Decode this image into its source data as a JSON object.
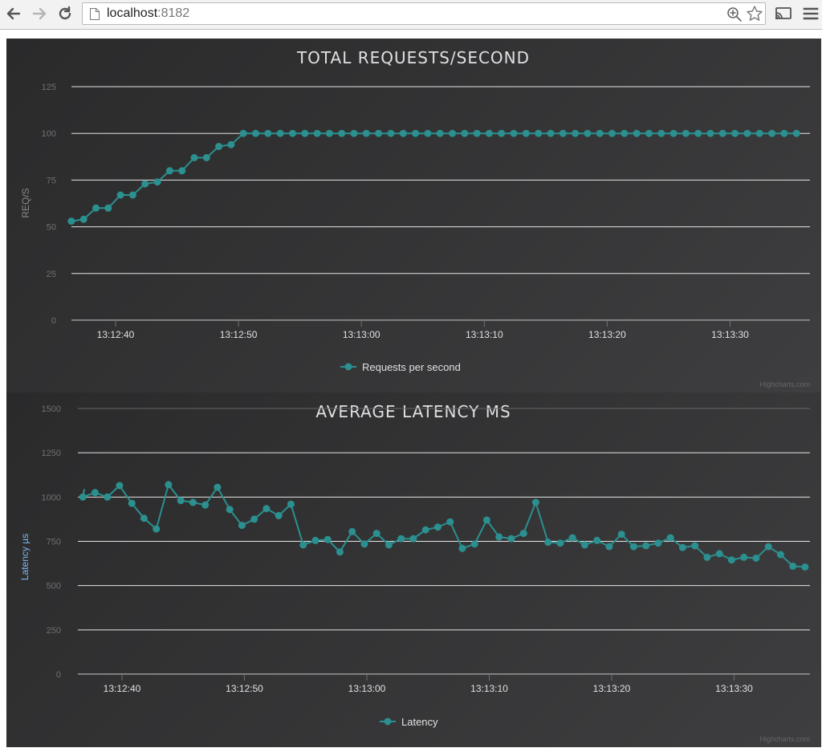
{
  "browser": {
    "url_host": "localhost",
    "url_port": ":8182",
    "icons": {
      "back": "back-arrow-icon",
      "forward": "forward-arrow-icon",
      "reload": "reload-icon",
      "page": "page-icon",
      "zoom": "zoom-icon",
      "bookmark": "star-icon",
      "cast": "cast-icon",
      "menu": "hamburger-menu-icon"
    }
  },
  "theme": {
    "accent": "#2b908f",
    "grid": "#e6e6e6",
    "background": "#2a2a2b"
  },
  "chart_data": [
    {
      "type": "line",
      "title": "TOTAL REQUESTS/SECOND",
      "ylabel": "REQ/S",
      "ylim": [
        0,
        125
      ],
      "yticks": [
        "0",
        "25",
        "50",
        "75",
        "100",
        "125"
      ],
      "xticks": [
        "13:12:40",
        "13:12:50",
        "13:13:00",
        "13:13:10",
        "13:13:20",
        "13:13:30"
      ],
      "xtick_seconds": [
        40,
        50,
        60,
        70,
        80,
        90
      ],
      "series": [
        {
          "name": "Requests per second",
          "x_seconds": [
            36.4,
            37.4,
            38.4,
            39.4,
            40.4,
            41.4,
            42.4,
            43.4,
            44.4,
            45.4,
            46.4,
            47.4,
            48.4,
            49.4,
            50.4,
            51.4,
            52.4,
            53.4,
            54.4,
            55.4,
            56.4,
            57.4,
            58.4,
            59.4,
            60.4,
            61.4,
            62.4,
            63.4,
            64.4,
            65.4,
            66.4,
            67.4,
            68.4,
            69.4,
            70.4,
            71.4,
            72.4,
            73.4,
            74.4,
            75.4,
            76.4,
            77.4,
            78.4,
            79.4,
            80.4,
            81.4,
            82.4,
            83.4,
            84.4,
            85.4,
            86.4,
            87.4,
            88.4,
            89.4,
            90.4,
            91.4,
            92.4,
            93.4,
            94.4,
            95.4
          ],
          "values": [
            53,
            54,
            60,
            60,
            67,
            67,
            73,
            74,
            80,
            80,
            87,
            87,
            93,
            94,
            100,
            100,
            100,
            100,
            100,
            100,
            100,
            100,
            100,
            100,
            100,
            100,
            100,
            100,
            100,
            100,
            100,
            100,
            100,
            100,
            100,
            100,
            100,
            100,
            100,
            100,
            100,
            100,
            100,
            100,
            100,
            100,
            100,
            100,
            100,
            100,
            100,
            100,
            100,
            100,
            100,
            100,
            100,
            100,
            100,
            100
          ]
        }
      ],
      "legend": "bottom-center",
      "credits": "Highcharts.com"
    },
    {
      "type": "line",
      "title": "AVERAGE LATENCY MS",
      "ylabel": "Latency µs",
      "ylim": [
        0,
        1500
      ],
      "yticks": [
        "0",
        "250",
        "500",
        "750",
        "1000",
        "1250",
        "1500"
      ],
      "xticks": [
        "13:12:40",
        "13:12:50",
        "13:13:00",
        "13:13:10",
        "13:13:20",
        "13:13:30"
      ],
      "xtick_seconds": [
        40,
        50,
        60,
        70,
        80,
        90
      ],
      "series": [
        {
          "name": "Latency",
          "x_seconds": [
            36.8,
            37.8,
            38.8,
            39.8,
            40.8,
            41.8,
            42.8,
            43.8,
            44.8,
            45.8,
            46.8,
            47.8,
            48.8,
            49.8,
            50.8,
            51.8,
            52.8,
            53.8,
            54.8,
            55.8,
            56.8,
            57.8,
            58.8,
            59.8,
            60.8,
            61.8,
            62.8,
            63.8,
            64.8,
            65.8,
            66.8,
            67.8,
            68.8,
            69.8,
            70.8,
            71.8,
            72.8,
            73.8,
            74.8,
            75.8,
            76.8,
            77.8,
            78.8,
            79.8,
            80.8,
            81.8,
            82.8,
            83.8,
            84.8,
            85.8,
            86.8,
            87.8,
            88.8,
            89.8,
            90.8,
            91.8,
            92.8,
            93.8,
            94.8,
            95.8
          ],
          "values": [
            1000,
            1025,
            1000,
            1065,
            965,
            880,
            820,
            1070,
            980,
            970,
            955,
            1055,
            930,
            840,
            875,
            935,
            895,
            960,
            730,
            755,
            760,
            690,
            805,
            735,
            795,
            730,
            765,
            765,
            815,
            830,
            860,
            710,
            735,
            870,
            775,
            765,
            795,
            970,
            745,
            740,
            770,
            730,
            755,
            720,
            790,
            720,
            725,
            740,
            770,
            715,
            725,
            660,
            680,
            645,
            660,
            655,
            720,
            675,
            610,
            605
          ]
        }
      ],
      "legend": "bottom-center",
      "credits": "Highcharts.com"
    }
  ]
}
